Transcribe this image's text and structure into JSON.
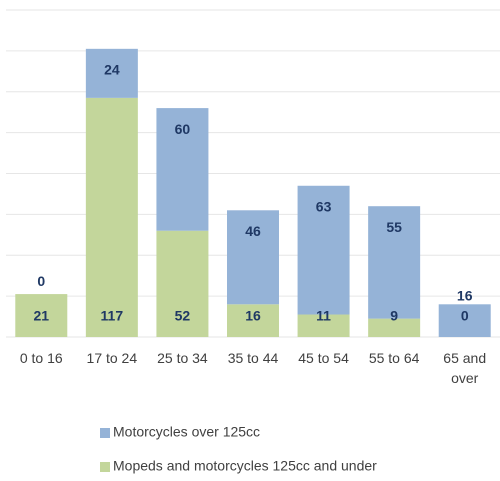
{
  "chart_data": {
    "type": "stacked_bar",
    "categories": [
      "0 to 16",
      "17 to 24",
      "25 to 34",
      "35 to 44",
      "45 to 54",
      "55 to 64",
      "65 and over"
    ],
    "series": [
      {
        "name": "Mopeds and motorcycles 125cc and under",
        "color": "#c3d69b",
        "values": [
          21,
          117,
          52,
          16,
          11,
          9,
          0
        ]
      },
      {
        "name": "Motorcycles over 125cc",
        "color": "#95b3d7",
        "values": [
          0,
          24,
          60,
          46,
          63,
          55,
          16
        ]
      }
    ],
    "ylim": [
      0,
      160
    ],
    "yticks": [
      0,
      20,
      40,
      60,
      80,
      100,
      120,
      140,
      160
    ],
    "grid": true
  }
}
